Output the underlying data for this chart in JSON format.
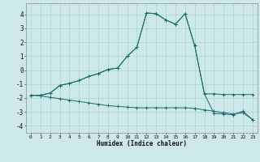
{
  "title": "",
  "xlabel": "Humidex (Indice chaleur)",
  "bg_color": "#cce8e8",
  "line_color": "#1a6b6b",
  "grid_color": "#aacccc",
  "xlim": [
    -0.5,
    23.5
  ],
  "ylim": [
    -4.5,
    4.8
  ],
  "xticks": [
    0,
    1,
    2,
    3,
    4,
    5,
    6,
    7,
    8,
    9,
    10,
    11,
    12,
    13,
    14,
    15,
    16,
    17,
    18,
    19,
    20,
    21,
    22,
    23
  ],
  "yticks": [
    -4,
    -3,
    -2,
    -1,
    0,
    1,
    2,
    3,
    4
  ],
  "line1_x": [
    0,
    1,
    2,
    3,
    4,
    5,
    6,
    7,
    8,
    9,
    10,
    11,
    12,
    13,
    14,
    15,
    16,
    17,
    18,
    19,
    20,
    21,
    22,
    23
  ],
  "line1_y": [
    -1.8,
    -1.8,
    -1.65,
    -1.1,
    -0.95,
    -0.75,
    -0.45,
    -0.25,
    0.05,
    0.15,
    1.0,
    1.65,
    4.1,
    4.05,
    3.6,
    3.3,
    4.05,
    1.75,
    -1.7,
    -1.7,
    -1.75,
    -1.75,
    -1.75,
    -1.75
  ],
  "line2_x": [
    0,
    1,
    2,
    3,
    4,
    5,
    6,
    7,
    8,
    9,
    10,
    11,
    12,
    13,
    14,
    15,
    16,
    17,
    18,
    19,
    20,
    21,
    22,
    23
  ],
  "line2_y": [
    -1.8,
    -1.8,
    -1.65,
    -1.1,
    -0.95,
    -0.75,
    -0.45,
    -0.25,
    0.05,
    0.15,
    1.0,
    1.65,
    4.1,
    4.05,
    3.6,
    3.3,
    4.05,
    1.75,
    -1.7,
    -3.1,
    -3.15,
    -3.2,
    -2.95,
    -3.55
  ],
  "line3_x": [
    0,
    1,
    2,
    3,
    4,
    5,
    6,
    7,
    8,
    9,
    10,
    11,
    12,
    13,
    14,
    15,
    16,
    17,
    18,
    19,
    20,
    21,
    22,
    23
  ],
  "line3_y": [
    -1.8,
    -1.85,
    -1.95,
    -2.05,
    -2.15,
    -2.25,
    -2.35,
    -2.45,
    -2.55,
    -2.6,
    -2.65,
    -2.7,
    -2.7,
    -2.7,
    -2.7,
    -2.7,
    -2.7,
    -2.75,
    -2.85,
    -2.95,
    -3.05,
    -3.15,
    -3.05,
    -3.55
  ]
}
